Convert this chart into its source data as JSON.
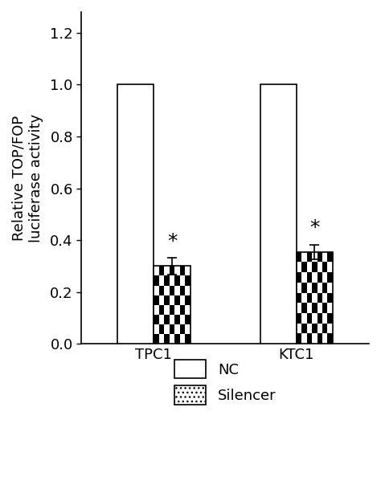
{
  "groups": [
    "TPC1",
    "KTC1"
  ],
  "nc_values": [
    1.0,
    1.0
  ],
  "silencer_values": [
    0.3,
    0.355
  ],
  "silencer_errors": [
    0.032,
    0.028
  ],
  "bar_edgecolor": "#000000",
  "bar_width": 0.28,
  "group_centers": [
    1.0,
    2.1
  ],
  "bar_gap": 0.0,
  "ylim": [
    0,
    1.28
  ],
  "yticks": [
    0.0,
    0.2,
    0.4,
    0.6,
    0.8,
    1.0,
    1.2
  ],
  "ylabel_line1": "Relative TOP/FOP",
  "ylabel_line2": "luciferase activity",
  "asterisk_fontsize": 18,
  "tick_fontsize": 13,
  "label_fontsize": 13,
  "legend_fontsize": 13,
  "checker_n": 7,
  "background_color": "#ffffff",
  "figure_facecolor": "#ffffff"
}
